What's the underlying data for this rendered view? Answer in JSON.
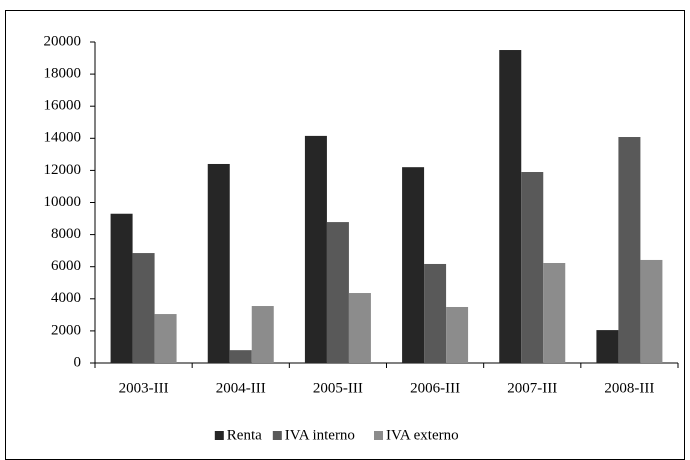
{
  "chart_data": {
    "type": "bar",
    "categories": [
      "2003-III",
      "2004-III",
      "2005-III",
      "2006-III",
      "2007-III",
      "2008-III"
    ],
    "series": [
      {
        "name": "Renta",
        "color": "#262626",
        "values": [
          9300,
          12400,
          14150,
          12200,
          19500,
          2050
        ]
      },
      {
        "name": "IVA interno",
        "color": "#595959",
        "values": [
          6850,
          800,
          8780,
          6170,
          11900,
          14080
        ]
      },
      {
        "name": "IVA externo",
        "color": "#8c8c8c",
        "values": [
          3050,
          3550,
          4360,
          3490,
          6230,
          6420
        ]
      }
    ],
    "ylim": [
      0,
      20000
    ],
    "yticks": [
      0,
      2000,
      4000,
      6000,
      8000,
      10000,
      12000,
      14000,
      16000,
      18000,
      20000
    ],
    "grid": false,
    "legend": "bottom"
  }
}
